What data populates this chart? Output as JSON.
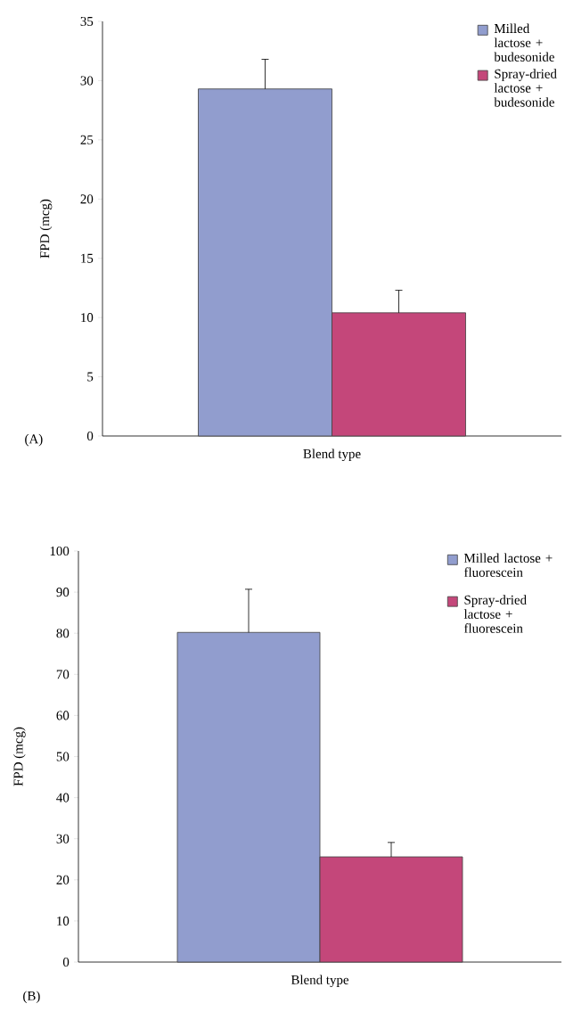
{
  "chart_data": [
    {
      "type": "bar",
      "categories": [
        null
      ],
      "xlabel": "Blend type",
      "ylabel": "FPD (mcg)",
      "ylim": [
        0,
        35
      ],
      "yticks": [
        0,
        5,
        10,
        15,
        20,
        25,
        30,
        35
      ],
      "legend": "top right",
      "annotations": [
        "(A)"
      ],
      "series": [
        {
          "name": "Milled lactose + budesonide",
          "color": "#919dce",
          "values": [
            29.3
          ],
          "errors": [
            [
              29.3,
              31.8
            ]
          ]
        },
        {
          "name": "Spray-dried lactose + budesonide",
          "color": "#c4477a",
          "values": [
            10.4
          ],
          "errors": [
            [
              10.4,
              12.3
            ]
          ]
        }
      ]
    },
    {
      "type": "bar",
      "categories": [
        null
      ],
      "xlabel": "Blend type",
      "ylabel": "FPD (mcg)",
      "ylim": [
        0,
        100
      ],
      "yticks": [
        0,
        10,
        20,
        30,
        40,
        50,
        60,
        70,
        80,
        90,
        100
      ],
      "legend": "top right",
      "annotations": [
        "(B)"
      ],
      "series": [
        {
          "name": "Milled lactose + fluorescein",
          "color": "#919dce",
          "values": [
            80.2
          ],
          "errors": [
            [
              80.2,
              90.7
            ]
          ]
        },
        {
          "name": "Spray-dried lactose + fluorescein",
          "color": "#c4477a",
          "values": [
            25.6
          ],
          "errors": [
            [
              25.6,
              29.1
            ]
          ]
        }
      ]
    }
  ]
}
